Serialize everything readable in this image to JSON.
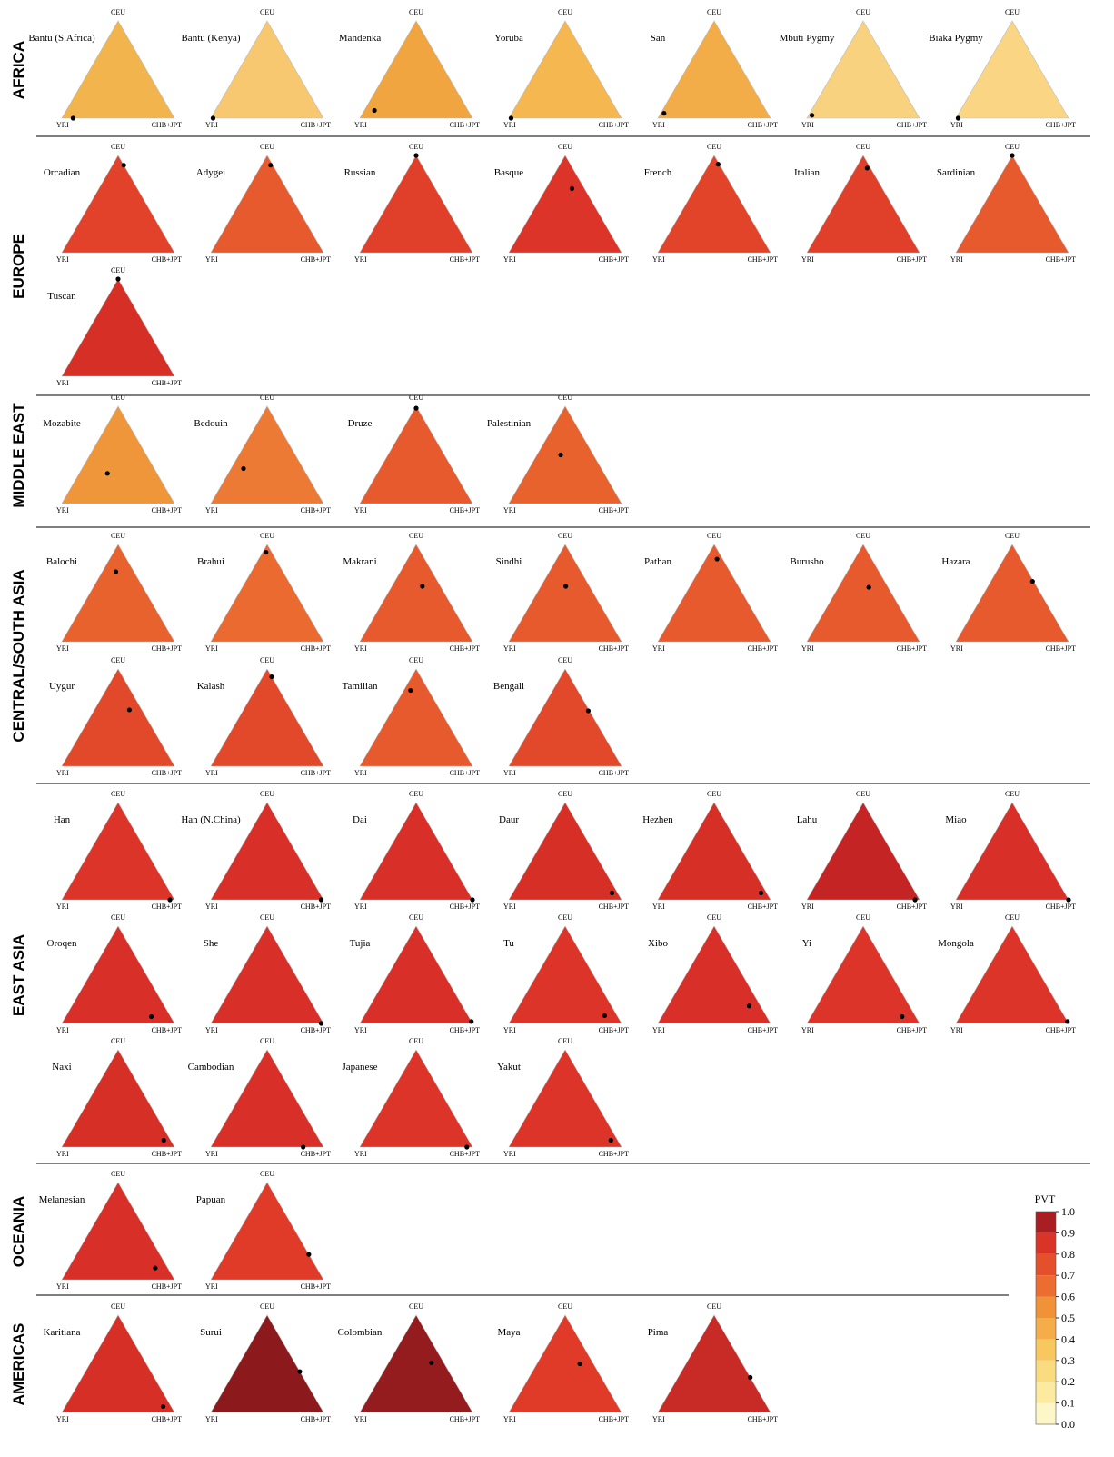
{
  "figure": {
    "axis_labels": {
      "top": "CEU",
      "left": "YRI",
      "right": "CHB+JPT"
    },
    "regions": [
      {
        "name": "AFRICA",
        "panels": [
          {
            "label": "Bantu (S.Africa)",
            "fill": "#f2b54e",
            "ceu": 0,
            "chb": 0.1
          },
          {
            "label": "Bantu (Kenya)",
            "fill": "#f8c870",
            "ceu": 0,
            "chb": 0.02
          },
          {
            "label": "Mandenka",
            "fill": "#f0a540",
            "ceu": 0.08,
            "chb": 0.09
          },
          {
            "label": "Yoruba",
            "fill": "#f5b850",
            "ceu": 0,
            "chb": 0.02
          },
          {
            "label": "San",
            "fill": "#f2ad48",
            "ceu": 0.05,
            "chb": 0.03
          },
          {
            "label": "Mbuti Pygmy",
            "fill": "#f8d27e",
            "ceu": 0.03,
            "chb": 0.03
          },
          {
            "label": "Biaka Pygmy",
            "fill": "#fad684",
            "ceu": 0,
            "chb": 0.02
          }
        ]
      },
      {
        "name": "EUROPE",
        "panels": [
          {
            "label": "Orcadian",
            "fill": "#e2422a",
            "ceu": 0.9,
            "chb": 0.1
          },
          {
            "label": "Adygei",
            "fill": "#e65a2e",
            "ceu": 0.9,
            "chb": 0.08
          },
          {
            "label": "Russian",
            "fill": "#e0402a",
            "ceu": 1,
            "chb": 0
          },
          {
            "label": "Basque",
            "fill": "#dc3428",
            "ceu": 0.66,
            "chb": 0.23
          },
          {
            "label": "French",
            "fill": "#e2442a",
            "ceu": 0.91,
            "chb": 0.08
          },
          {
            "label": "Italian",
            "fill": "#e0402a",
            "ceu": 0.87,
            "chb": 0.1
          },
          {
            "label": "Sardinian",
            "fill": "#e65a2e",
            "ceu": 1,
            "chb": 0
          },
          {
            "label": "Tuscan",
            "fill": "#d63026",
            "ceu": 1,
            "chb": 0
          }
        ]
      },
      {
        "name": "MIDDLE EAST",
        "panels": [
          {
            "label": "Mozabite",
            "fill": "#f0963a",
            "ceu": 0.31,
            "chb": 0.25
          },
          {
            "label": "Bedouin",
            "fill": "#ec7a34",
            "ceu": 0.36,
            "chb": 0.11
          },
          {
            "label": "Druze",
            "fill": "#e65a2e",
            "ceu": 0.98,
            "chb": 0.01
          },
          {
            "label": "Palestinian",
            "fill": "#e8622e",
            "ceu": 0.5,
            "chb": 0.21
          }
        ]
      },
      {
        "name": "CENTRAL/SOUTH ASIA",
        "panels": [
          {
            "label": "Balochi",
            "fill": "#e8622e",
            "ceu": 0.72,
            "chb": 0.12
          },
          {
            "label": "Brahui",
            "fill": "#ea6a30",
            "ceu": 0.92,
            "chb": 0.03
          },
          {
            "label": "Makrani",
            "fill": "#e65a2e",
            "ceu": 0.57,
            "chb": 0.27
          },
          {
            "label": "Sindhi",
            "fill": "#e65a2e",
            "ceu": 0.57,
            "chb": 0.22
          },
          {
            "label": "Pathan",
            "fill": "#e65a2e",
            "ceu": 0.85,
            "chb": 0.1
          },
          {
            "label": "Burusho",
            "fill": "#e65a2e",
            "ceu": 0.56,
            "chb": 0.27
          },
          {
            "label": "Hazara",
            "fill": "#e65a2e",
            "ceu": 0.62,
            "chb": 0.37
          },
          {
            "label": "Uygur",
            "fill": "#e2482a",
            "ceu": 0.58,
            "chb": 0.31
          },
          {
            "label": "Kalash",
            "fill": "#e2482a",
            "ceu": 0.92,
            "chb": 0.08
          },
          {
            "label": "Tamilian",
            "fill": "#e65a2e",
            "ceu": 0.78,
            "chb": 0.06
          },
          {
            "label": "Bengali",
            "fill": "#e2482a",
            "ceu": 0.57,
            "chb": 0.42
          }
        ]
      },
      {
        "name": "EAST ASIA",
        "panels": [
          {
            "label": "Han",
            "fill": "#dc3428",
            "ceu": 0,
            "chb": 0.96
          },
          {
            "label": "Han (N.China)",
            "fill": "#d83028",
            "ceu": 0,
            "chb": 0.98
          },
          {
            "label": "Dai",
            "fill": "#d83028",
            "ceu": 0,
            "chb": 1
          },
          {
            "label": "Daur",
            "fill": "#d63026",
            "ceu": 0.07,
            "chb": 0.88
          },
          {
            "label": "Hezhen",
            "fill": "#d63026",
            "ceu": 0.07,
            "chb": 0.88
          },
          {
            "label": "Lahu",
            "fill": "#c42424",
            "ceu": 0,
            "chb": 0.96
          },
          {
            "label": "Miao",
            "fill": "#d83028",
            "ceu": 0,
            "chb": 1
          },
          {
            "label": "Oroqen",
            "fill": "#d83028",
            "ceu": 0.07,
            "chb": 0.76
          },
          {
            "label": "She",
            "fill": "#d83028",
            "ceu": 0,
            "chb": 0.98
          },
          {
            "label": "Tujia",
            "fill": "#d83028",
            "ceu": 0.02,
            "chb": 0.98
          },
          {
            "label": "Tu",
            "fill": "#dc3428",
            "ceu": 0.08,
            "chb": 0.81
          },
          {
            "label": "Xibo",
            "fill": "#d83028",
            "ceu": 0.18,
            "chb": 0.72
          },
          {
            "label": "Yi",
            "fill": "#dc3428",
            "ceu": 0.07,
            "chb": 0.81
          },
          {
            "label": "Mongola",
            "fill": "#dc3428",
            "ceu": 0.02,
            "chb": 0.98
          },
          {
            "label": "Naxi",
            "fill": "#d63026",
            "ceu": 0.07,
            "chb": 0.87
          },
          {
            "label": "Cambodian",
            "fill": "#d83028",
            "ceu": 0,
            "chb": 0.82
          },
          {
            "label": "Japanese",
            "fill": "#dc3428",
            "ceu": 0,
            "chb": 0.95
          },
          {
            "label": "Yakut",
            "fill": "#dc3428",
            "ceu": 0.07,
            "chb": 0.87
          }
        ]
      },
      {
        "name": "OCEANIA",
        "panels": [
          {
            "label": "Melanesian",
            "fill": "#d83028",
            "ceu": 0.12,
            "chb": 0.77
          },
          {
            "label": "Papuan",
            "fill": "#e03a28",
            "ceu": 0.26,
            "chb": 0.74
          }
        ]
      },
      {
        "name": "AMERICAS",
        "panels": [
          {
            "label": "Karitiana",
            "fill": "#d63026",
            "ceu": 0.06,
            "chb": 0.87
          },
          {
            "label": "Surui",
            "fill": "#8c1a1c",
            "ceu": 0.42,
            "chb": 0.58
          },
          {
            "label": "Colombian",
            "fill": "#941c1e",
            "ceu": 0.51,
            "chb": 0.38
          },
          {
            "label": "Maya",
            "fill": "#e03a28",
            "ceu": 0.5,
            "chb": 0.38
          },
          {
            "label": "Pima",
            "fill": "#c82a26",
            "ceu": 0.36,
            "chb": 0.64
          }
        ]
      }
    ],
    "colorbar": {
      "title": "PVT",
      "colors": [
        "#fdf6c8",
        "#fbeaa0",
        "#fadb80",
        "#f8c860",
        "#f4ad48",
        "#f09238",
        "#eb6e30",
        "#e5502c",
        "#da3428",
        "#a81e22"
      ],
      "ticks": [
        {
          "value": 0,
          "label": "0.0"
        },
        {
          "value": 0.1,
          "label": "0.1"
        },
        {
          "value": 0.2,
          "label": "0.2"
        },
        {
          "value": 0.3,
          "label": "0.3"
        },
        {
          "value": 0.4,
          "label": "0.4"
        },
        {
          "value": 0.5,
          "label": "0.5"
        },
        {
          "value": 0.6,
          "label": "0.6"
        },
        {
          "value": 0.7,
          "label": "0.7"
        },
        {
          "value": 0.8,
          "label": "0.8"
        },
        {
          "value": 0.9,
          "label": "0.9"
        },
        {
          "value": 1,
          "label": "1.0"
        }
      ]
    }
  }
}
